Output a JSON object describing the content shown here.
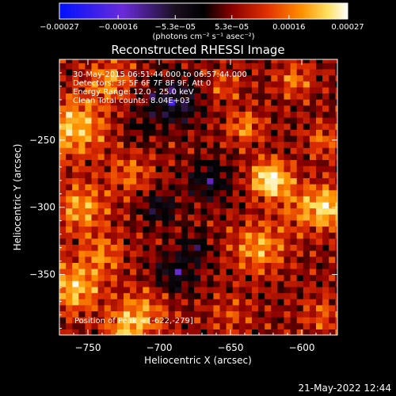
{
  "chart_data": {
    "type": "heatmap",
    "title": "Reconstructed RHESSI Image",
    "xlabel": "Heliocentric X (arcsec)",
    "ylabel": "Heliocentric Y (arcsec)",
    "xlim": [
      -770,
      -575
    ],
    "ylim": [
      -395,
      -190
    ],
    "x_ticks": [
      -750,
      -700,
      -650,
      -600
    ],
    "y_ticks": [
      -250,
      -300,
      -350
    ],
    "x_tick_labels": [
      "−750",
      "−700",
      "−650",
      "−600"
    ],
    "y_tick_labels": [
      "−250",
      "−300",
      "−350"
    ],
    "colorbar": {
      "min": -0.00027,
      "max": 0.00027,
      "ticks": [
        -0.00027,
        -0.00016,
        -5.3e-05,
        5.3e-05,
        0.00016,
        0.00027
      ],
      "tick_labels": [
        "−0.00027",
        "−0.00016",
        "−5.3e−05",
        "5.3e−05",
        "0.00016",
        "0.00027"
      ],
      "unit_label": "(photons cm⁻² s⁻¹ asec⁻²)",
      "colormap": [
        "#0010ff",
        "#6a2bd9",
        "#1a1020",
        "#000000",
        "#8b0000",
        "#e03000",
        "#ff9000",
        "#ffe060",
        "#ffffff"
      ]
    },
    "annotations": [
      "30-May-2015 06:51:44.000 to 06:57:44.000",
      "Detectors: 3F 5F 6F 7F 8F 9F, Att 0",
      "Energy Range: 12.0 - 25.0 keV",
      "Clean    Total counts: 8.04E+03"
    ],
    "peak_label": "Position of Peak = [-622,-279]",
    "peak": [
      -622,
      -279
    ],
    "timestamp": "21-May-2022 12:44"
  }
}
